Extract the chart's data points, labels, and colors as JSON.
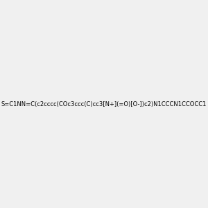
{
  "smiles": "S=C1NN=C(c2cccc(COc3ccc(C)cc3[N+](=O)[O-])c2)N1CCCN1CCOCC1",
  "image_size": 300,
  "background_color": "#f0f0f0",
  "title": ""
}
